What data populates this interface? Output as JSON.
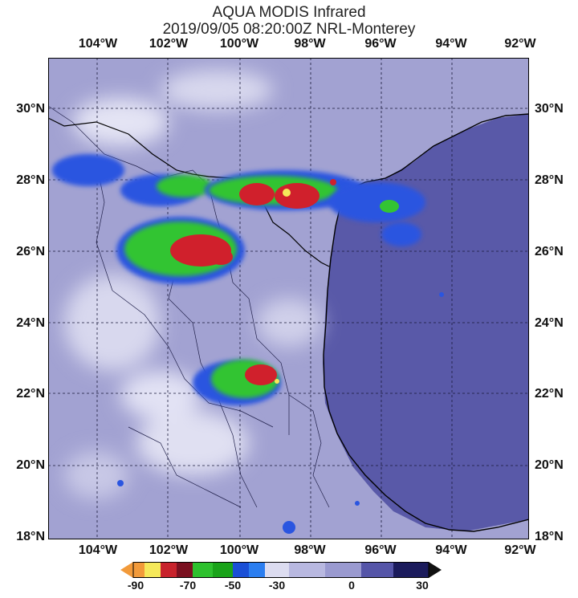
{
  "header": {
    "title": "AQUA MODIS Infrared",
    "subtitle": "2019/09/05 08:20:00Z NRL-Monterey"
  },
  "longitude_labels": [
    "104°W",
    "102°W",
    "100°W",
    "98°W",
    "96°W",
    "94°W",
    "92°W"
  ],
  "latitude_labels": [
    "30°N",
    "28°N",
    "26°N",
    "24°N",
    "22°N",
    "20°N",
    "18°N"
  ],
  "colorbar": {
    "ticks": [
      "-90",
      "-70",
      "-50",
      "-30",
      "0",
      "30"
    ],
    "colors": [
      "#f29a3a",
      "#f5e85a",
      "#c8232c",
      "#7a1020",
      "#2ec12e",
      "#19a319",
      "#1a4fd6",
      "#2b7ef0",
      "#dcdcf0",
      "#9a9ad0",
      "#5555a8",
      "#1b1b5c"
    ]
  },
  "map_colors": {
    "ocean": "#5959a8",
    "land_cloud": "#a4a4d4",
    "coast": "#000000",
    "grid": "#222244",
    "cold_green": "#33c433",
    "cold_red": "#d0202c",
    "cold_blue": "#2a55e0",
    "cold_yellow": "#f5e85a"
  }
}
